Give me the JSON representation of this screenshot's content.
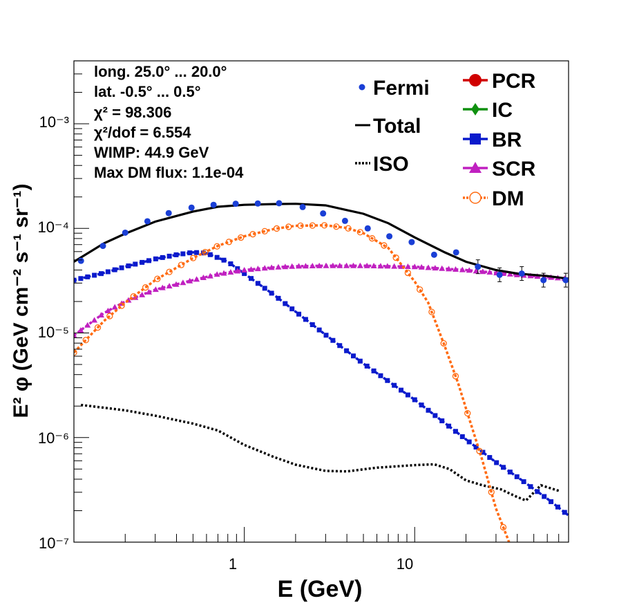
{
  "chart_data": {
    "type": "scatter",
    "log_x": true,
    "log_y": true,
    "xlim": [
      0.1,
      80
    ],
    "ylim": [
      1e-07,
      0.004
    ],
    "xlabel": "E (GeV)",
    "ylabel": "E² φ (GeV cm⁻² s⁻¹ sr⁻¹)",
    "x_ticklabels": [
      "1",
      "10"
    ],
    "y_ticklabels": [
      "10⁻⁷",
      "10⁻⁶",
      "10⁻⁵",
      "10⁻⁴",
      "10⁻³"
    ],
    "info_lines": [
      "long. 25.0° ... 20.0°",
      "lat. -0.5° ... 0.5°",
      "χ² = 98.306",
      "χ²/dof = 6.554",
      "WIMP: 44.9 GeV",
      "Max DM flux: 1.1e-04"
    ],
    "legend": [
      {
        "label": "Fermi",
        "color": "#1a3fd6",
        "marker": "dot"
      },
      {
        "label": "Total",
        "color": "#000000",
        "marker": "line"
      },
      {
        "label": "ISO",
        "color": "#000000",
        "marker": "dotted"
      },
      {
        "label": "PCR",
        "color": "#d00000",
        "marker": "circle"
      },
      {
        "label": "IC",
        "color": "#109010",
        "marker": "diamond"
      },
      {
        "label": "BR",
        "color": "#0a1acc",
        "marker": "square"
      },
      {
        "label": "SCR",
        "color": "#c020c0",
        "marker": "triangle"
      },
      {
        "label": "DM",
        "color": "#ff6a10",
        "marker": "open-circle"
      }
    ],
    "series": [
      {
        "name": "Fermi",
        "color": "#1a3fd6",
        "x": [
          0.11,
          0.148,
          0.2,
          0.27,
          0.36,
          0.49,
          0.66,
          0.89,
          1.2,
          1.6,
          2.2,
          2.9,
          3.9,
          5.3,
          7.1,
          9.6,
          13,
          17.5,
          23.5,
          31.5,
          42.5,
          57,
          77
        ],
        "y": [
          4.9e-05,
          6.8e-05,
          9.1e-05,
          0.000117,
          0.00014,
          0.000158,
          0.000168,
          0.000172,
          0.000173,
          0.000174,
          0.00016,
          0.000139,
          0.000118,
          0.0001,
          8.4e-05,
          7.4e-05,
          5.6e-05,
          5.9e-05,
          4.3e-05,
          3.6e-05,
          3.7e-05,
          3.2e-05,
          3.2e-05
        ]
      },
      {
        "name": "Total",
        "color": "#000000",
        "x": [
          0.1,
          0.15,
          0.2,
          0.3,
          0.5,
          0.7,
          1.0,
          1.5,
          2.0,
          3.0,
          5.0,
          7.0,
          10,
          15,
          20,
          30,
          40,
          60,
          80
        ],
        "y": [
          4.8e-05,
          7.2e-05,
          8.9e-05,
          0.000116,
          0.000145,
          0.000161,
          0.000168,
          0.000171,
          0.000172,
          0.000166,
          0.000138,
          0.000112,
          8.2e-05,
          5.9e-05,
          4.8e-05,
          4e-05,
          3.7e-05,
          3.5e-05,
          3.3e-05
        ]
      },
      {
        "name": "ISO",
        "color": "#000000",
        "x": [
          0.11,
          0.15,
          0.2,
          0.3,
          0.5,
          0.7,
          1.0,
          1.5,
          2.0,
          3.0,
          4.0,
          6.0,
          10,
          13,
          16,
          20,
          25,
          32,
          40,
          45,
          55,
          70
        ],
        "y": [
          2.05e-06,
          1.93e-06,
          1.82e-06,
          1.62e-06,
          1.36e-06,
          1.17e-06,
          8.5e-07,
          6.5e-07,
          5.5e-07,
          4.8e-07,
          4.75e-07,
          5.15e-07,
          5.45e-07,
          5.55e-07,
          5e-07,
          3.9e-07,
          3.5e-07,
          3.2e-07,
          2.7e-07,
          2.5e-07,
          3.5e-07,
          3.1e-07
        ]
      },
      {
        "name": "BR",
        "color": "#0a1acc",
        "x": [
          0.1,
          0.15,
          0.2,
          0.3,
          0.4,
          0.5,
          0.6,
          0.8,
          1.0,
          1.5,
          2.0,
          3.0,
          5.0,
          10,
          20,
          30,
          40,
          60,
          80
        ],
        "y": [
          3.2e-05,
          3.75e-05,
          4.3e-05,
          5.1e-05,
          5.6e-05,
          5.9e-05,
          5.8e-05,
          4.8e-05,
          3.7e-05,
          2.3e-05,
          1.6e-05,
          9.6e-06,
          5.1e-06,
          2.3e-06,
          9.6e-07,
          5.8e-07,
          4.2e-07,
          2.6e-07,
          1.8e-07
        ]
      },
      {
        "name": "SCR",
        "color": "#c020c0",
        "x": [
          0.1,
          0.15,
          0.2,
          0.3,
          0.5,
          0.7,
          1.0,
          1.5,
          2.0,
          3.0,
          5.0,
          10,
          20,
          40,
          80
        ],
        "y": [
          9.5e-06,
          1.55e-05,
          2e-05,
          2.6e-05,
          3.2e-05,
          3.65e-05,
          4e-05,
          4.25e-05,
          4.35e-05,
          4.4e-05,
          4.4e-05,
          4.3e-05,
          4e-05,
          3.6e-05,
          3.3e-05
        ]
      },
      {
        "name": "DM",
        "color": "#ff6a10",
        "x": [
          0.1,
          0.15,
          0.2,
          0.3,
          0.5,
          0.7,
          1.0,
          1.5,
          2.0,
          3.0,
          4.0,
          5.0,
          7.0,
          10,
          12,
          15,
          18,
          20,
          25,
          30,
          35,
          40
        ],
        "y": [
          6.5e-06,
          1.3e-05,
          1.95e-05,
          3.2e-05,
          5.2e-05,
          6.8e-05,
          8.4e-05,
          9.9e-05,
          0.000106,
          0.000107,
          0.000101,
          9e-05,
          6.5e-05,
          3.1e-05,
          1.95e-05,
          7.5e-06,
          3.3e-06,
          1.9e-06,
          6e-07,
          2.1e-07,
          1.1e-07,
          6e-08
        ]
      }
    ]
  }
}
